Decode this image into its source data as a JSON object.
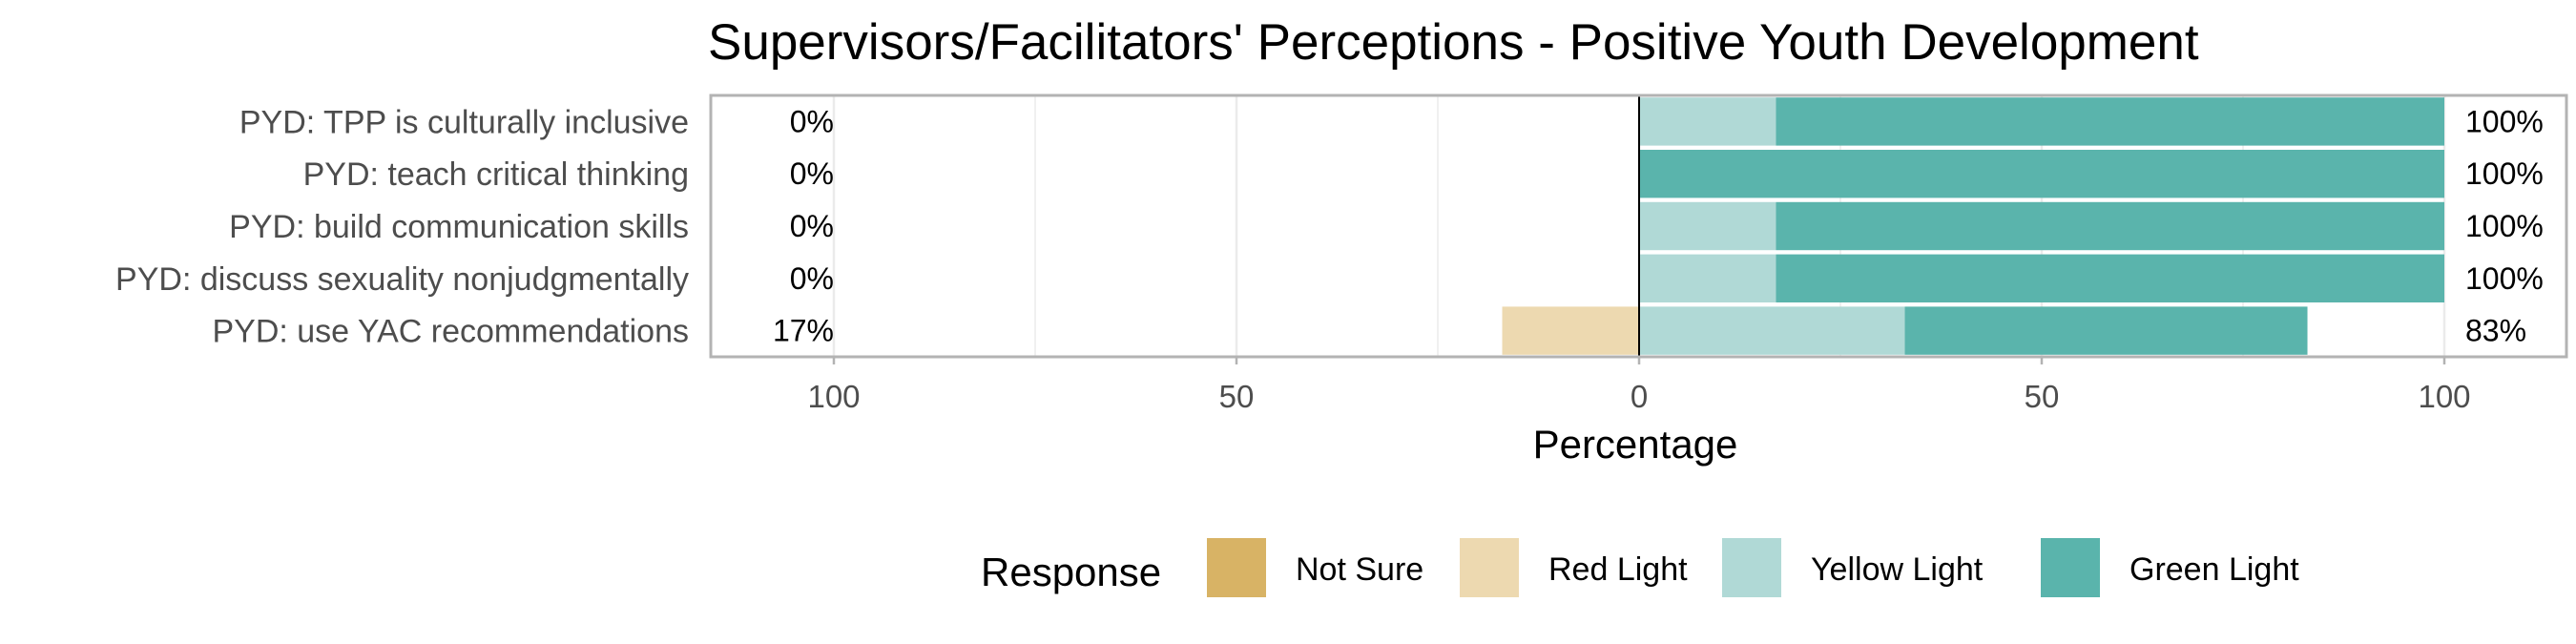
{
  "chart_data": {
    "type": "bar",
    "orientation": "horizontal",
    "stacking": "diverging",
    "title": "Supervisors/Facilitators' Perceptions - Positive Youth Development",
    "xlabel": "Percentage",
    "ylabel": "",
    "xlim": [
      -100,
      100
    ],
    "x_ticks": [
      -100,
      -50,
      0,
      50,
      100
    ],
    "x_tick_labels": [
      "100",
      "50",
      "0",
      "50",
      "100"
    ],
    "grid": true,
    "legend_title": "Response",
    "legend_position": "bottom",
    "categories": [
      "PYD: TPP is culturally inclusive",
      "PYD: teach critical thinking",
      "PYD: build communication skills",
      "PYD: discuss sexuality nonjudgmentally",
      "PYD: use YAC recommendations"
    ],
    "series": [
      {
        "name": "Not Sure",
        "color": "#D8B365",
        "side": "negative",
        "values": [
          0,
          0,
          0,
          0,
          0
        ]
      },
      {
        "name": "Red Light",
        "color": "#EDD9B0",
        "side": "negative",
        "values": [
          0,
          0,
          0,
          0,
          17
        ]
      },
      {
        "name": "Yellow Light",
        "color": "#B0D9D6",
        "side": "positive",
        "values": [
          17,
          0,
          17,
          17,
          33
        ]
      },
      {
        "name": "Green Light",
        "color": "#5AB4AC",
        "side": "positive",
        "values": [
          83,
          100,
          83,
          83,
          50
        ]
      }
    ],
    "left_labels": [
      "0%",
      "0%",
      "0%",
      "0%",
      "17%"
    ],
    "right_labels": [
      "100%",
      "100%",
      "100%",
      "100%",
      "83%"
    ]
  }
}
